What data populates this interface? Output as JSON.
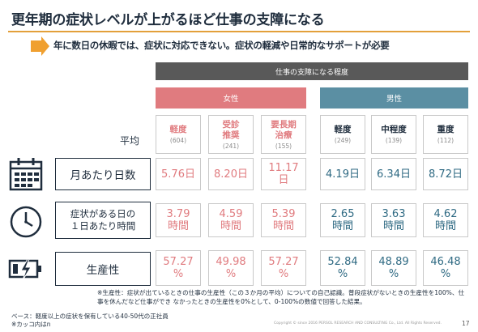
{
  "title": "更年期の症状レベルが上がるほど仕事の支障になる",
  "subtitle": "年に数日の休暇では、症状に対応できない。症状の軽減や日常的なサポートが必要",
  "header": "仕事の支障になる程度",
  "groups": {
    "female": "女性",
    "male": "男性"
  },
  "average_label": "平均",
  "columns": [
    {
      "label": "軽度",
      "n": "(604)"
    },
    {
      "label": "受診\n推奨",
      "n": "(241)"
    },
    {
      "label": "要長期\n治療",
      "n": "(155)"
    },
    {
      "label": "軽度",
      "n": "(249)"
    },
    {
      "label": "中程度",
      "n": "(139)"
    },
    {
      "label": "重度",
      "n": "(112)"
    }
  ],
  "rows": [
    {
      "label": "月あたり日数",
      "icon": "calendar-icon",
      "values": [
        "5.76日",
        "8.20日",
        "11.17\n日",
        "4.19日",
        "6.34日",
        "8.72日"
      ]
    },
    {
      "label": "症状がある日の\n１日あたり時間",
      "icon": "clock-icon",
      "values": [
        "3.79\n時間",
        "4.59\n時間",
        "5.39\n時間",
        "2.65\n時間",
        "3.63\n時間",
        "4.62\n時間"
      ]
    },
    {
      "label": "生産性",
      "icon": "battery-low-icon",
      "values": [
        "57.27\n%",
        "49.98\n%",
        "57.27\n%",
        "52.84\n%",
        "48.89\n%",
        "46.48\n%"
      ]
    }
  ],
  "note": "※生産性：症状が出ているときの仕事の生産性（この３か月の平均）についての自己認識。普段症状がないときの生産性を100%、仕事を休んだなど仕事ができ なかったときの生産性を0%として、0-100%の数値で回答した結果。",
  "base_note": "ベース：軽度以上の症状を保有している40-50代の正社員",
  "n_note": "※カッコ内はn",
  "copyright": "Copyright © since 2016 PERSOL RESEARCH AND CONSULTING Co., Ltd. All Rights Reserved.",
  "page_number": "17",
  "colors": {
    "female": "#e07b7f",
    "male": "#5b8fa3",
    "accent": "#f0a030",
    "header": "#595959"
  }
}
